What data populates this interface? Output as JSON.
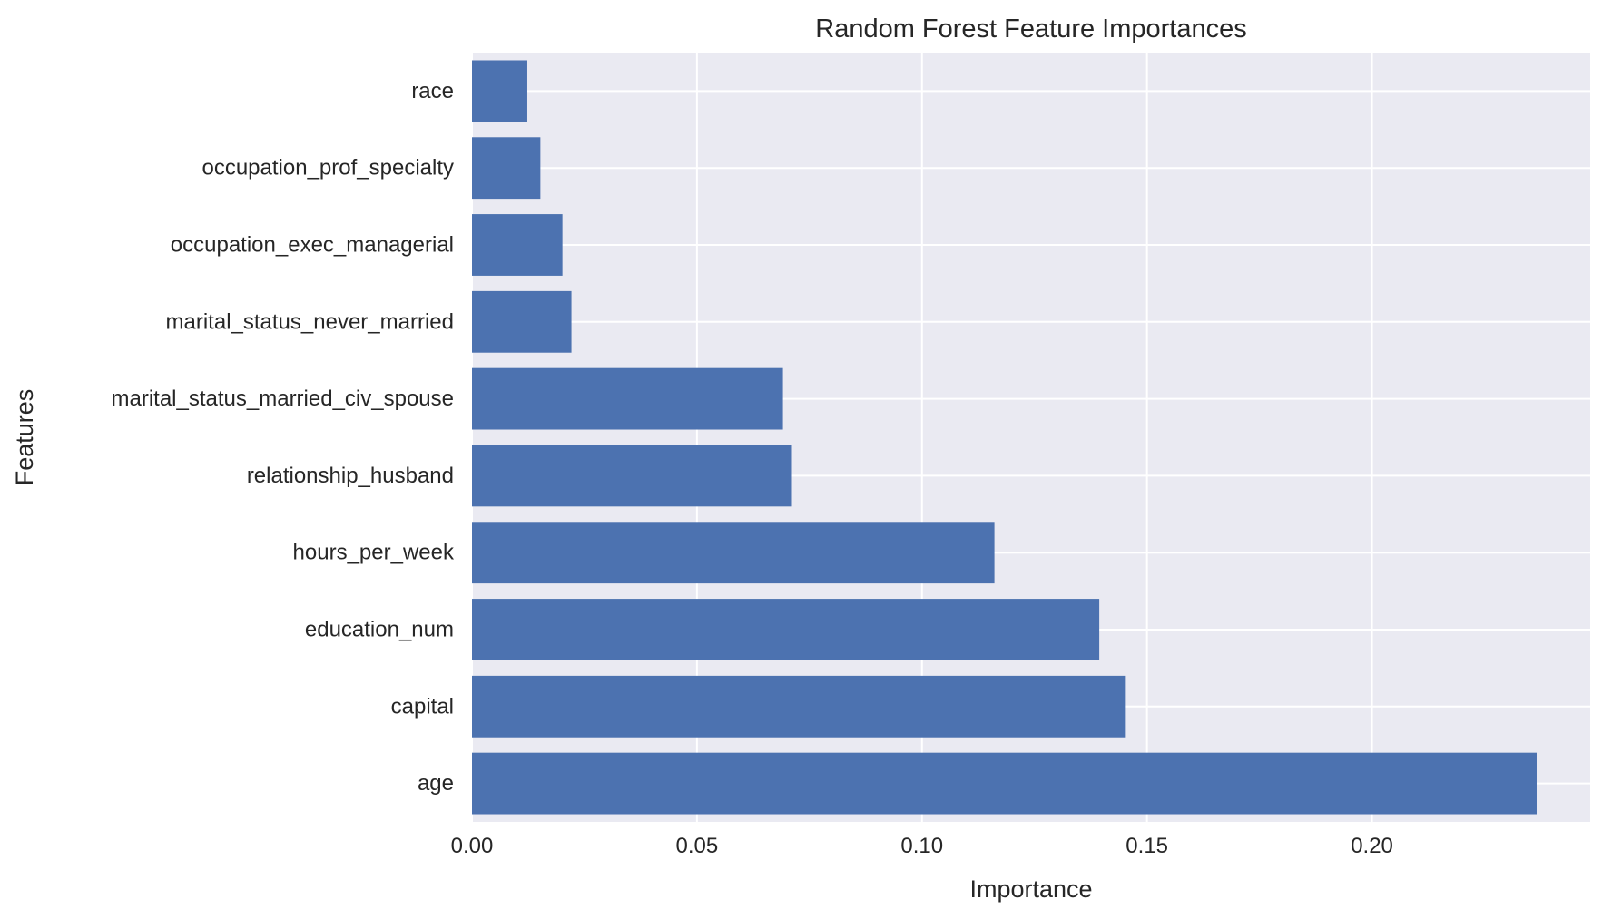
{
  "chart_data": {
    "type": "bar",
    "orientation": "horizontal",
    "title": "Random Forest Feature Importances",
    "xlabel": "Importance",
    "ylabel": "Features",
    "categories": [
      "age",
      "capital",
      "education_num",
      "hours_per_week",
      "relationship_husband",
      "marital_status_married_civ_spouse",
      "marital_status_never_married",
      "occupation_exec_managerial",
      "occupation_prof_specialty",
      "race"
    ],
    "values": [
      0.2366,
      0.1453,
      0.1394,
      0.1161,
      0.0711,
      0.0691,
      0.0221,
      0.0201,
      0.0152,
      0.0123
    ],
    "xlim": [
      0,
      0.2485
    ],
    "xticks": [
      0.0,
      0.05,
      0.1,
      0.15,
      0.2
    ],
    "xtick_labels": [
      "0.00",
      "0.05",
      "0.10",
      "0.15",
      "0.20"
    ],
    "grid": true,
    "bar_color": "#4c72b0",
    "background_color": "#eaeaf2",
    "grid_color": "#ffffff"
  }
}
